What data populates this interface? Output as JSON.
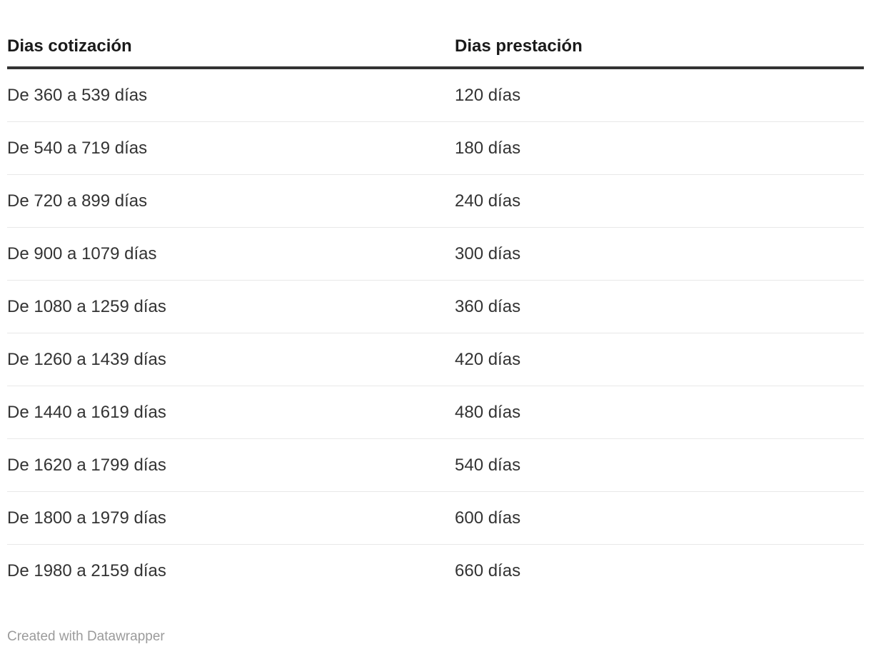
{
  "chart_data": {
    "type": "table",
    "title": "",
    "columns": [
      "Dias cotización",
      "Dias prestación"
    ],
    "rows": [
      [
        "De 360 a 539 días",
        "120 días"
      ],
      [
        "De 540 a 719 días",
        "180 días"
      ],
      [
        "De 720 a 899 días",
        "240 días"
      ],
      [
        "De 900 a 1079 días",
        "300 días"
      ],
      [
        "De 1080 a 1259 días",
        "360 días"
      ],
      [
        "De 1260 a 1439 días",
        "420 días"
      ],
      [
        "De 1440 a 1619 días",
        "480 días"
      ],
      [
        "De 1620 a 1799 días",
        "540 días"
      ],
      [
        "De 1800 a 1979 días",
        "600 días"
      ],
      [
        "De 1980 a 2159 días",
        "660 días"
      ]
    ],
    "layout": {
      "header_alignment": "left",
      "cell_alignment": "left",
      "grid": "horizontal-dividers-only"
    }
  },
  "footer": {
    "attribution": "Created with Datawrapper"
  },
  "colors": {
    "background": "#ffffff",
    "header_text": "#1a1a1a",
    "body_text": "#333333",
    "header_rule": "#333333",
    "row_divider": "#e8e8e8",
    "attribution_text": "#9b9b9b"
  }
}
